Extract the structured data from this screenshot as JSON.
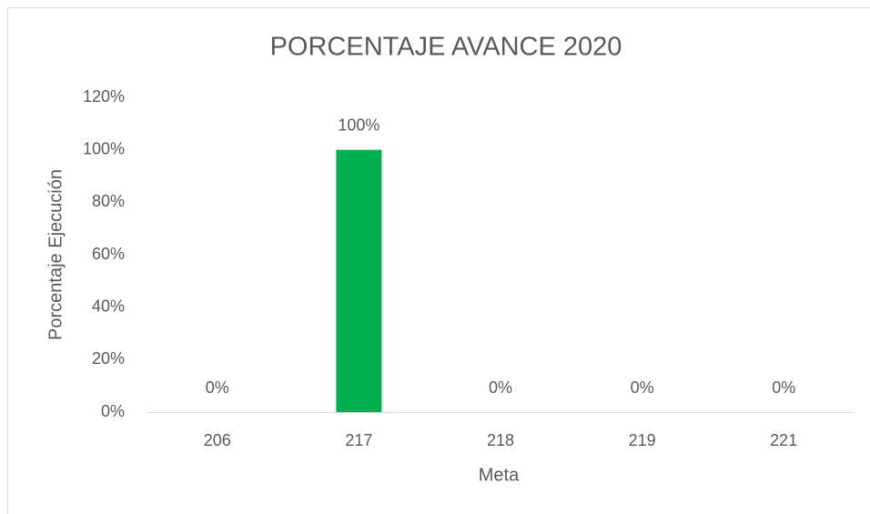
{
  "chart_data": {
    "type": "bar",
    "title": "PORCENTAJE AVANCE 2020",
    "x_label": "Meta",
    "y_label": "Porcentaje Ejecución",
    "categories": [
      "206",
      "217",
      "218",
      "219",
      "221"
    ],
    "values": [
      0,
      100,
      0,
      0,
      0
    ],
    "value_labels": [
      "0%",
      "100%",
      "0%",
      "0%",
      "0%"
    ],
    "color": "#00b050",
    "ylim": [
      0,
      120
    ],
    "yticks": [
      {
        "value": 0,
        "label": "0%"
      },
      {
        "value": 20,
        "label": "20%"
      },
      {
        "value": 40,
        "label": "40%"
      },
      {
        "value": 60,
        "label": "60%"
      },
      {
        "value": 80,
        "label": "80%"
      },
      {
        "value": 100,
        "label": "100%"
      },
      {
        "value": 120,
        "label": "120%"
      }
    ],
    "grid": false
  }
}
